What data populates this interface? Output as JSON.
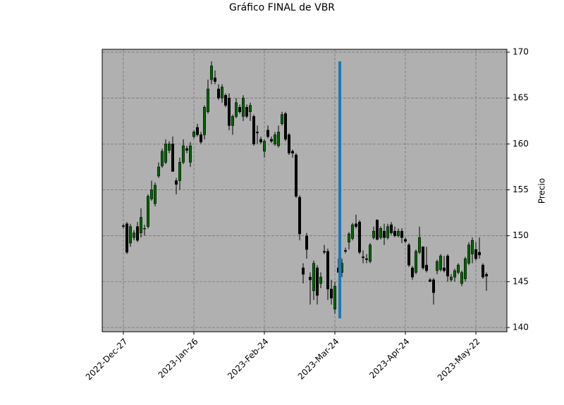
{
  "chart_data": {
    "type": "candlestick",
    "title": "Gráfico FINAL de VBR",
    "ylabel": "Precio",
    "open": [
      151,
      151.3,
      149.2,
      149.8,
      151,
      150.3,
      150.8,
      151,
      154,
      153.5,
      156.5,
      157.6,
      158,
      159.3,
      160,
      156,
      156,
      158,
      159.5,
      158,
      160.8,
      161.8,
      161,
      161,
      163.5,
      167,
      167.2,
      166,
      165,
      165.3,
      165,
      162,
      163,
      164,
      163,
      164,
      163.5,
      163,
      161.3,
      160.5,
      159.2,
      161.5,
      160.5,
      160,
      159.8,
      162.2,
      163.3,
      161,
      159.2,
      158.8,
      154.2,
      146.5,
      150,
      145.5,
      144,
      146.5,
      144.8,
      148.3,
      148.3,
      144.2,
      142,
      146.5,
      146,
      148.4,
      149.3,
      149.7,
      151.3,
      151.5,
      147.7,
      147.5,
      147.2,
      149.8,
      151.7,
      149.8,
      150.5,
      149.8,
      151.2,
      150.5,
      150,
      150.5,
      149.6,
      149,
      146.5,
      146,
      148.2,
      148.8,
      146.8,
      145.2,
      145.2,
      146.2,
      146.3,
      146.5,
      147.8,
      145.2,
      145.5,
      146,
      144.8,
      145.3,
      147,
      148,
      148.5,
      148.2,
      146.8,
      145.8
    ],
    "high": [
      151.3,
      151.5,
      151.3,
      150.6,
      151.5,
      153,
      151.2,
      154.5,
      156,
      155.8,
      158,
      159.5,
      160.5,
      160.3,
      160.8,
      156.3,
      158.5,
      160.5,
      159.8,
      160.2,
      161.5,
      162.2,
      161.3,
      164.2,
      167,
      169,
      168,
      166.5,
      166.5,
      165.5,
      165.5,
      163.2,
      165,
      164.3,
      165.3,
      164.3,
      164.5,
      163.2,
      162,
      160.8,
      160.5,
      162,
      160.8,
      161.3,
      162,
      163.5,
      163.5,
      161.2,
      159.4,
      159,
      154.4,
      147,
      150.3,
      146,
      147.3,
      146.8,
      146,
      149,
      148.6,
      145.2,
      145,
      147.5,
      147.5,
      148.7,
      150.4,
      151.4,
      152.3,
      151.7,
      148.4,
      148,
      149.2,
      151,
      151.8,
      151,
      151.3,
      151.3,
      151.5,
      151,
      150.8,
      150.8,
      149.8,
      149.2,
      146.7,
      148.5,
      151,
      148.8,
      148.8,
      145.4,
      145.4,
      147.4,
      148,
      147.8,
      148,
      145.8,
      146.4,
      147,
      146.2,
      147.7,
      149.3,
      149.8,
      149.3,
      149.8,
      147,
      146
    ],
    "low": [
      150.8,
      148,
      148.8,
      149.5,
      149.3,
      149.8,
      150,
      150.8,
      153.8,
      153.2,
      156.3,
      157.4,
      157.8,
      159,
      157,
      154.5,
      155,
      157.8,
      159,
      157.5,
      160.6,
      160.8,
      160,
      160.5,
      163.3,
      166.5,
      166.5,
      164.8,
      164.5,
      164,
      161.5,
      161,
      162.8,
      163.3,
      162.5,
      162.8,
      162.5,
      159.8,
      160,
      160,
      158.5,
      160.6,
      160.1,
      159.8,
      159.6,
      162,
      160.3,
      158.8,
      158.5,
      154.1,
      149.5,
      144.8,
      147.5,
      142.5,
      143,
      142.5,
      144.3,
      148,
      143,
      142.5,
      141.5,
      146,
      145.5,
      148.1,
      148.5,
      149.5,
      150.8,
      148,
      147,
      147,
      147,
      149.6,
      149.5,
      149.6,
      149,
      149.6,
      150.1,
      149.8,
      149.8,
      149.2,
      149.2,
      146.6,
      145.2,
      145.8,
      148,
      146.3,
      146,
      145,
      142.5,
      145.8,
      146.1,
      146,
      145,
      145,
      145,
      145.8,
      144.5,
      145,
      146.8,
      147,
      147.3,
      147.5,
      145.3,
      144
    ],
    "close": [
      151.1,
      148.2,
      151,
      150.3,
      149.5,
      152,
      150.8,
      154.3,
      155,
      155.5,
      157.5,
      159.2,
      160,
      160,
      157,
      155.6,
      158,
      159.8,
      159.3,
      159.8,
      161.3,
      161,
      160.2,
      164,
      166,
      168.5,
      166.8,
      165,
      166.2,
      164.2,
      162,
      163,
      164.5,
      163.5,
      165,
      163,
      164.2,
      160,
      161.2,
      160.2,
      160.3,
      160.8,
      160.3,
      161,
      161.3,
      163.2,
      160.5,
      159,
      159,
      154.3,
      150.2,
      145.8,
      148.5,
      145.2,
      147,
      143.5,
      145.5,
      148.2,
      144.2,
      143.2,
      144.5,
      146,
      147,
      148.3,
      150.2,
      151.2,
      151,
      148.2,
      147.6,
      147.4,
      149,
      150.5,
      149.6,
      150.8,
      149.8,
      151,
      150.3,
      150,
      150.5,
      149.8,
      149.4,
      146.8,
      145.5,
      148.3,
      149.8,
      146.5,
      146.2,
      145,
      143.8,
      147.2,
      147.8,
      146.2,
      145.6,
      145.5,
      146.2,
      146.8,
      146,
      147.5,
      149,
      149.5,
      147.5,
      147.9,
      145.5,
      145.6
    ],
    "up_color": "#006400",
    "down_color": "#000000",
    "vline": {
      "x": 61.4,
      "ymin": 141,
      "ymax": 169,
      "color": "#1f77b4"
    },
    "xlim": [
      -6,
      108.8
    ],
    "ylim": [
      139.54,
      170.31
    ],
    "xticks": [
      {
        "value": 0,
        "label": "2022-Dec-27"
      },
      {
        "value": 20,
        "label": "2023-Jan-26"
      },
      {
        "value": 40,
        "label": "2023-Feb-24"
      },
      {
        "value": 60,
        "label": "2023-Mar-24"
      },
      {
        "value": 80,
        "label": "2023-Apr-24"
      },
      {
        "value": 100,
        "label": "2023-May-22"
      }
    ],
    "yticks": [
      140,
      145,
      150,
      155,
      160,
      165,
      170
    ],
    "grid": true
  }
}
